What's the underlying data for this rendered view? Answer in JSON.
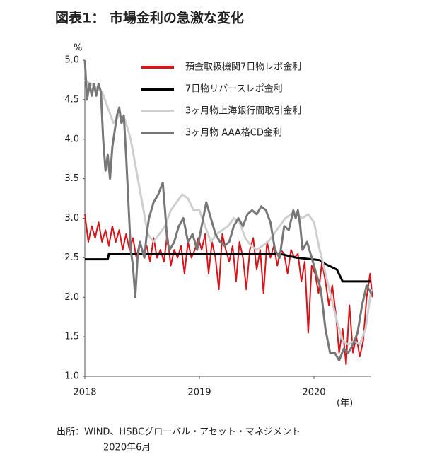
{
  "chart_data": {
    "type": "line",
    "title": "図表1： 市場金利の急激な変化",
    "y_unit": "%",
    "x_unit": "(年)",
    "source": [
      "出所：WIND、HSBCグローバル・アセット・マネジメント",
      "2020年6月"
    ],
    "xlim": [
      2018,
      2020.5
    ],
    "ylim": [
      1,
      5
    ],
    "xticks": [
      2018,
      2019,
      2020
    ],
    "yticks": [
      {
        "value": 1,
        "label": "1.0"
      },
      {
        "value": 1.5,
        "label": "1.5"
      },
      {
        "value": 2,
        "label": "2.0"
      },
      {
        "value": 2.5,
        "label": "2.5"
      },
      {
        "value": 3,
        "label": "3.0"
      },
      {
        "value": 3.5,
        "label": "3.5"
      },
      {
        "value": 4,
        "label": "4.0"
      },
      {
        "value": 4.5,
        "label": "4.5"
      },
      {
        "value": 5,
        "label": "5.0"
      }
    ],
    "grid": false,
    "series": [
      {
        "name": "預金取扱機関7日物レポ金利",
        "color": "#d7141a",
        "width": 2,
        "x": [
          2018.0,
          2018.03,
          2018.06,
          2018.09,
          2018.12,
          2018.15,
          2018.18,
          2018.21,
          2018.24,
          2018.27,
          2018.3,
          2018.33,
          2018.36,
          2018.39,
          2018.42,
          2018.45,
          2018.48,
          2018.51,
          2018.54,
          2018.57,
          2018.6,
          2018.63,
          2018.66,
          2018.69,
          2018.72,
          2018.75,
          2018.78,
          2018.81,
          2018.84,
          2018.87,
          2018.9,
          2018.93,
          2018.96,
          2018.99,
          2019.02,
          2019.05,
          2019.08,
          2019.11,
          2019.14,
          2019.17,
          2019.2,
          2019.23,
          2019.26,
          2019.29,
          2019.32,
          2019.35,
          2019.38,
          2019.41,
          2019.44,
          2019.47,
          2019.5,
          2019.53,
          2019.56,
          2019.59,
          2019.62,
          2019.65,
          2019.68,
          2019.71,
          2019.74,
          2019.77,
          2019.8,
          2019.83,
          2019.86,
          2019.89,
          2019.92,
          2019.95,
          2019.98,
          2020.01,
          2020.04,
          2020.07,
          2020.1,
          2020.13,
          2020.16,
          2020.19,
          2020.22,
          2020.25,
          2020.28,
          2020.31,
          2020.34,
          2020.37,
          2020.4,
          2020.43,
          2020.46,
          2020.49,
          2020.51
        ],
        "values": [
          3.05,
          2.7,
          2.9,
          2.75,
          2.95,
          2.7,
          2.85,
          2.65,
          2.9,
          2.7,
          2.85,
          2.6,
          2.8,
          2.6,
          2.75,
          2.5,
          2.7,
          2.55,
          2.65,
          2.45,
          2.75,
          2.5,
          2.6,
          2.45,
          2.8,
          2.4,
          2.6,
          2.5,
          2.65,
          2.3,
          2.7,
          2.5,
          2.6,
          2.75,
          2.6,
          2.8,
          2.3,
          2.7,
          2.5,
          2.1,
          2.8,
          2.6,
          2.45,
          2.65,
          2.2,
          2.7,
          2.5,
          2.1,
          2.6,
          2.75,
          2.35,
          2.6,
          2.05,
          2.7,
          2.5,
          2.65,
          2.4,
          2.6,
          2.55,
          2.3,
          2.6,
          2.5,
          2.55,
          2.2,
          2.45,
          1.55,
          2.4,
          2.3,
          2.05,
          2.45,
          2.2,
          1.9,
          2.15,
          1.8,
          1.3,
          1.6,
          1.15,
          1.9,
          1.3,
          1.5,
          1.25,
          1.45,
          2.0,
          2.3,
          2.0
        ]
      },
      {
        "name": "7日物リバースレポ金利",
        "color": "#000000",
        "width": 3,
        "x": [
          2018.0,
          2018.2,
          2018.21,
          2019.7,
          2019.85,
          2020.05,
          2020.1,
          2020.2,
          2020.25,
          2020.5
        ],
        "values": [
          2.48,
          2.48,
          2.55,
          2.55,
          2.5,
          2.47,
          2.42,
          2.35,
          2.2,
          2.2
        ]
      },
      {
        "name": "3ヶ月物上海銀行間取引金利",
        "color": "#cfcfcf",
        "width": 3,
        "x": [
          2018.0,
          2018.05,
          2018.1,
          2018.15,
          2018.2,
          2018.25,
          2018.3,
          2018.35,
          2018.4,
          2018.45,
          2018.5,
          2018.55,
          2018.6,
          2018.65,
          2018.7,
          2018.75,
          2018.8,
          2018.85,
          2018.9,
          2018.95,
          2019.0,
          2019.05,
          2019.1,
          2019.15,
          2019.2,
          2019.25,
          2019.3,
          2019.35,
          2019.4,
          2019.45,
          2019.5,
          2019.55,
          2019.6,
          2019.65,
          2019.7,
          2019.75,
          2019.8,
          2019.85,
          2019.9,
          2019.95,
          2020.0,
          2020.05,
          2020.1,
          2020.15,
          2020.2,
          2020.25,
          2020.3,
          2020.35,
          2020.4,
          2020.45,
          2020.5
        ],
        "values": [
          4.75,
          4.7,
          4.65,
          4.6,
          4.4,
          4.2,
          4.3,
          4.25,
          4.0,
          3.6,
          3.2,
          2.8,
          2.7,
          2.8,
          2.9,
          3.1,
          3.2,
          3.3,
          3.25,
          3.1,
          3.1,
          2.9,
          2.7,
          2.8,
          2.85,
          2.9,
          3.0,
          2.95,
          2.75,
          2.65,
          2.6,
          2.65,
          2.7,
          2.8,
          2.9,
          3.0,
          3.05,
          3.05,
          3.0,
          3.05,
          2.95,
          2.6,
          2.3,
          2.0,
          1.7,
          1.45,
          1.4,
          1.45,
          1.4,
          1.6,
          2.1
        ]
      },
      {
        "name": "3ヶ月物 AAA格CD金利",
        "color": "#777777",
        "width": 3,
        "x": [
          2018.0,
          2018.02,
          2018.04,
          2018.06,
          2018.08,
          2018.1,
          2018.12,
          2018.14,
          2018.16,
          2018.18,
          2018.2,
          2018.22,
          2018.24,
          2018.26,
          2018.28,
          2018.3,
          2018.32,
          2018.34,
          2018.36,
          2018.38,
          2018.4,
          2018.42,
          2018.44,
          2018.46,
          2018.48,
          2018.5,
          2018.52,
          2018.54,
          2018.56,
          2018.6,
          2018.64,
          2018.68,
          2018.7,
          2018.72,
          2018.74,
          2018.78,
          2018.82,
          2018.86,
          2018.9,
          2018.94,
          2018.98,
          2019.02,
          2019.06,
          2019.1,
          2019.14,
          2019.18,
          2019.22,
          2019.26,
          2019.3,
          2019.34,
          2019.38,
          2019.42,
          2019.46,
          2019.5,
          2019.54,
          2019.58,
          2019.62,
          2019.66,
          2019.7,
          2019.74,
          2019.78,
          2019.82,
          2019.84,
          2019.86,
          2019.88,
          2019.9,
          2019.94,
          2019.98,
          2020.02,
          2020.06,
          2020.1,
          2020.14,
          2020.18,
          2020.22,
          2020.26,
          2020.3,
          2020.34,
          2020.38,
          2020.42,
          2020.46,
          2020.5
        ],
        "values": [
          5.0,
          4.5,
          4.7,
          4.55,
          4.7,
          4.55,
          4.7,
          4.6,
          4.0,
          3.6,
          3.8,
          3.5,
          3.9,
          4.1,
          4.3,
          4.4,
          4.2,
          4.3,
          3.8,
          3.2,
          2.6,
          2.4,
          2.0,
          2.5,
          2.7,
          2.6,
          2.5,
          2.8,
          3.0,
          3.2,
          3.3,
          3.45,
          3.1,
          2.7,
          2.6,
          2.7,
          2.9,
          3.0,
          2.7,
          2.8,
          2.6,
          2.9,
          3.2,
          3.0,
          2.8,
          2.7,
          2.65,
          2.7,
          2.9,
          3.0,
          2.9,
          3.05,
          3.1,
          3.05,
          3.15,
          3.1,
          2.95,
          2.6,
          2.5,
          2.9,
          2.85,
          3.1,
          3.0,
          3.1,
          2.9,
          2.6,
          2.7,
          2.5,
          2.3,
          2.1,
          1.6,
          1.3,
          1.3,
          1.2,
          1.35,
          1.3,
          1.4,
          1.55,
          1.9,
          2.15,
          2.05
        ]
      }
    ]
  }
}
